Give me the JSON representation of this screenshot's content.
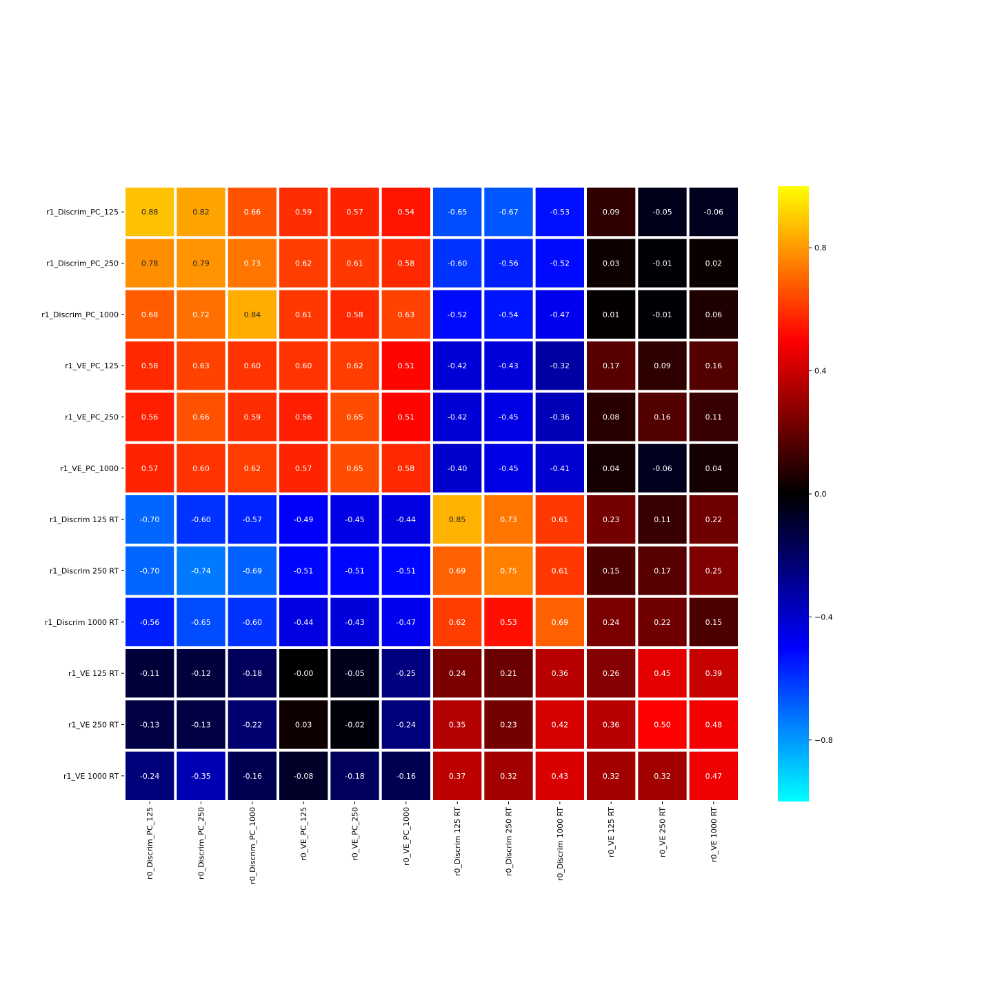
{
  "chart_data": {
    "type": "heatmap",
    "title": "",
    "xlabel": "",
    "ylabel": "",
    "rows": [
      "r1_Discrim_PC_125",
      "r1_Discrim_PC_250",
      "r1_Discrim_PC_1000",
      "r1_VE_PC_125",
      "r1_VE_PC_250",
      "r1_VE_PC_1000",
      "r1_Discrim 125 RT",
      "r1_Discrim 250 RT",
      "r1_Discrim 1000 RT",
      "r1_VE 125 RT",
      "r1_VE 250 RT",
      "r1_VE 1000 RT"
    ],
    "columns": [
      "r0_Discrim_PC_125",
      "r0_Discrim_PC_250",
      "r0_Discrim_PC_1000",
      "r0_VE_PC_125",
      "r0_VE_PC_250",
      "r0_VE_PC_1000",
      "r0_Discrim 125 RT",
      "r0_Discrim 250 RT",
      "r0_Discrim 1000 RT",
      "r0_VE 125 RT",
      "r0_VE 250 RT",
      "r0_VE 1000 RT"
    ],
    "values": [
      [
        0.88,
        0.82,
        0.66,
        0.59,
        0.57,
        0.54,
        -0.65,
        -0.67,
        -0.53,
        0.09,
        -0.05,
        -0.06
      ],
      [
        0.78,
        0.79,
        0.73,
        0.62,
        0.61,
        0.58,
        -0.6,
        -0.56,
        -0.52,
        0.03,
        -0.01,
        0.02
      ],
      [
        0.68,
        0.72,
        0.84,
        0.61,
        0.58,
        0.63,
        -0.52,
        -0.54,
        -0.47,
        0.01,
        -0.01,
        0.06
      ],
      [
        0.58,
        0.63,
        0.6,
        0.6,
        0.62,
        0.51,
        -0.42,
        -0.43,
        -0.32,
        0.17,
        0.09,
        0.16
      ],
      [
        0.56,
        0.66,
        0.59,
        0.56,
        0.65,
        0.51,
        -0.42,
        -0.45,
        -0.36,
        0.08,
        0.16,
        0.11
      ],
      [
        0.57,
        0.6,
        0.62,
        0.57,
        0.65,
        0.58,
        -0.4,
        -0.45,
        -0.41,
        0.04,
        -0.06,
        0.04
      ],
      [
        -0.7,
        -0.6,
        -0.57,
        -0.49,
        -0.45,
        -0.44,
        0.85,
        0.73,
        0.61,
        0.23,
        0.11,
        0.22
      ],
      [
        -0.7,
        -0.74,
        -0.69,
        -0.51,
        -0.51,
        -0.51,
        0.69,
        0.75,
        0.61,
        0.15,
        0.17,
        0.25
      ],
      [
        -0.56,
        -0.65,
        -0.6,
        -0.44,
        -0.43,
        -0.47,
        0.62,
        0.53,
        0.69,
        0.24,
        0.22,
        0.15
      ],
      [
        -0.11,
        -0.12,
        -0.18,
        -0.0,
        -0.05,
        -0.25,
        0.24,
        0.21,
        0.36,
        0.26,
        0.45,
        0.39
      ],
      [
        -0.13,
        -0.13,
        -0.22,
        0.03,
        -0.02,
        -0.24,
        0.35,
        0.23,
        0.42,
        0.36,
        0.5,
        0.48
      ],
      [
        -0.24,
        -0.35,
        -0.16,
        -0.08,
        -0.18,
        -0.16,
        0.37,
        0.32,
        0.43,
        0.32,
        0.32,
        0.47
      ]
    ],
    "value_labels": [
      [
        "0.88",
        "0.82",
        "0.66",
        "0.59",
        "0.57",
        "0.54",
        "-0.65",
        "-0.67",
        "-0.53",
        "0.09",
        "-0.05",
        "-0.06"
      ],
      [
        "0.78",
        "0.79",
        "0.73",
        "0.62",
        "0.61",
        "0.58",
        "-0.60",
        "-0.56",
        "-0.52",
        "0.03",
        "-0.01",
        "0.02"
      ],
      [
        "0.68",
        "0.72",
        "0.84",
        "0.61",
        "0.58",
        "0.63",
        "-0.52",
        "-0.54",
        "-0.47",
        "0.01",
        "-0.01",
        "0.06"
      ],
      [
        "0.58",
        "0.63",
        "0.60",
        "0.60",
        "0.62",
        "0.51",
        "-0.42",
        "-0.43",
        "-0.32",
        "0.17",
        "0.09",
        "0.16"
      ],
      [
        "0.56",
        "0.66",
        "0.59",
        "0.56",
        "0.65",
        "0.51",
        "-0.42",
        "-0.45",
        "-0.36",
        "0.08",
        "0.16",
        "0.11"
      ],
      [
        "0.57",
        "0.60",
        "0.62",
        "0.57",
        "0.65",
        "0.58",
        "-0.40",
        "-0.45",
        "-0.41",
        "0.04",
        "-0.06",
        "0.04"
      ],
      [
        "-0.70",
        "-0.60",
        "-0.57",
        "-0.49",
        "-0.45",
        "-0.44",
        "0.85",
        "0.73",
        "0.61",
        "0.23",
        "0.11",
        "0.22"
      ],
      [
        "-0.70",
        "-0.74",
        "-0.69",
        "-0.51",
        "-0.51",
        "-0.51",
        "0.69",
        "0.75",
        "0.61",
        "0.15",
        "0.17",
        "0.25"
      ],
      [
        "-0.56",
        "-0.65",
        "-0.60",
        "-0.44",
        "-0.43",
        "-0.47",
        "0.62",
        "0.53",
        "0.69",
        "0.24",
        "0.22",
        "0.15"
      ],
      [
        "-0.11",
        "-0.12",
        "-0.18",
        "-0.00",
        "-0.05",
        "-0.25",
        "0.24",
        "0.21",
        "0.36",
        "0.26",
        "0.45",
        "0.39"
      ],
      [
        "-0.13",
        "-0.13",
        "-0.22",
        "0.03",
        "-0.02",
        "-0.24",
        "0.35",
        "0.23",
        "0.42",
        "0.36",
        "0.50",
        "0.48"
      ],
      [
        "-0.24",
        "-0.35",
        "-0.16",
        "-0.08",
        "-0.18",
        "-0.16",
        "0.37",
        "0.32",
        "0.43",
        "0.32",
        "0.32",
        "0.47"
      ]
    ],
    "colorbar": {
      "vmin": -1.0,
      "vmax": 1.0,
      "ticks": [
        0.8,
        0.4,
        0.0,
        -0.4,
        -0.8
      ],
      "tick_labels": [
        "0.8",
        "0.4",
        "0.0",
        "−0.4",
        "−0.8"
      ],
      "colors": {
        "cyan": "#00ffff",
        "blue": "#0000ff",
        "black": "#000000",
        "red": "#ff0000",
        "yellow": "#ffff00"
      },
      "placement": "right"
    },
    "cell_border_color": "#ffffff",
    "annotation_text_color_dark": "#262626",
    "annotation_text_color_light": "#ffffff",
    "grid": false
  }
}
